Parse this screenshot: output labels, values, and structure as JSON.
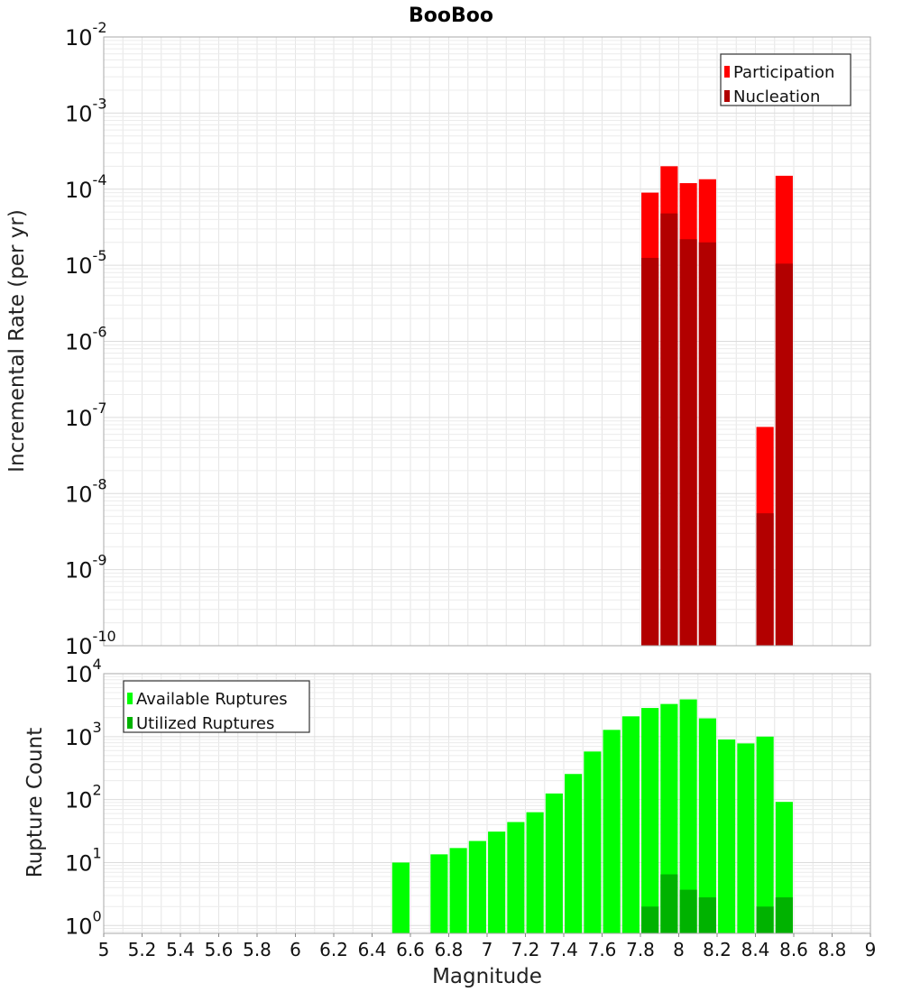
{
  "chart_data": [
    {
      "type": "bar",
      "title": "BooBoo",
      "xlabel": "Magnitude",
      "ylabel": "Incremental Rate (per yr)",
      "yscale": "log",
      "xlim": [
        5,
        9
      ],
      "ylim": [
        1e-10,
        0.01
      ],
      "grid": true,
      "legend_position": "top-right",
      "bar_width": 0.09,
      "ytick_exponents": [
        "-10",
        "-9",
        "-8",
        "-7",
        "-6",
        "-5",
        "-4",
        "-3",
        "-2"
      ],
      "series": [
        {
          "name": "Participation",
          "color": "#ff0000",
          "points": [
            {
              "x": 7.85,
              "y": 9e-05
            },
            {
              "x": 7.95,
              "y": 0.0002
            },
            {
              "x": 8.05,
              "y": 0.00012
            },
            {
              "x": 8.15,
              "y": 0.000135
            },
            {
              "x": 8.45,
              "y": 7.5e-08
            },
            {
              "x": 8.55,
              "y": 0.00015
            }
          ]
        },
        {
          "name": "Nucleation",
          "color": "#b20000",
          "points": [
            {
              "x": 7.85,
              "y": 1.25e-05
            },
            {
              "x": 7.95,
              "y": 4.8e-05
            },
            {
              "x": 8.05,
              "y": 2.2e-05
            },
            {
              "x": 8.15,
              "y": 2e-05
            },
            {
              "x": 8.45,
              "y": 5.5e-09
            },
            {
              "x": 8.55,
              "y": 1.05e-05
            }
          ]
        }
      ]
    },
    {
      "type": "bar",
      "xlabel": "Magnitude",
      "ylabel": "Rupture Count",
      "yscale": "log",
      "xlim": [
        5,
        9
      ],
      "ylim": [
        0.75,
        10000.0
      ],
      "grid": true,
      "legend_position": "top-left",
      "bar_width": 0.09,
      "xticks": [
        "5",
        "5.2",
        "5.4",
        "5.6",
        "5.8",
        "6",
        "6.2",
        "6.4",
        "6.6",
        "6.8",
        "7",
        "7.2",
        "7.4",
        "7.6",
        "7.8",
        "8",
        "8.2",
        "8.4",
        "8.6",
        "8.8",
        "9"
      ],
      "ytick_exponents": [
        "0",
        "1",
        "2",
        "3",
        "4"
      ],
      "series": [
        {
          "name": "Available Ruptures",
          "color": "#00ff00",
          "points": [
            {
              "x": 6.55,
              "y": 10
            },
            {
              "x": 6.75,
              "y": 13.5
            },
            {
              "x": 6.85,
              "y": 17
            },
            {
              "x": 6.95,
              "y": 22
            },
            {
              "x": 7.05,
              "y": 31
            },
            {
              "x": 7.15,
              "y": 44
            },
            {
              "x": 7.25,
              "y": 63
            },
            {
              "x": 7.35,
              "y": 125
            },
            {
              "x": 7.45,
              "y": 255
            },
            {
              "x": 7.55,
              "y": 580
            },
            {
              "x": 7.65,
              "y": 1280
            },
            {
              "x": 7.75,
              "y": 2100
            },
            {
              "x": 7.85,
              "y": 2850
            },
            {
              "x": 7.95,
              "y": 3300
            },
            {
              "x": 8.05,
              "y": 3900
            },
            {
              "x": 8.15,
              "y": 1950
            },
            {
              "x": 8.25,
              "y": 900
            },
            {
              "x": 8.35,
              "y": 780
            },
            {
              "x": 8.45,
              "y": 1000
            },
            {
              "x": 8.55,
              "y": 92
            }
          ]
        },
        {
          "name": "Utilized Ruptures",
          "color": "#00b200",
          "points": [
            {
              "x": 7.85,
              "y": 2
            },
            {
              "x": 7.95,
              "y": 6.5
            },
            {
              "x": 8.05,
              "y": 3.7
            },
            {
              "x": 8.15,
              "y": 2.8
            },
            {
              "x": 8.45,
              "y": 2
            },
            {
              "x": 8.55,
              "y": 2.8
            }
          ]
        }
      ]
    }
  ]
}
